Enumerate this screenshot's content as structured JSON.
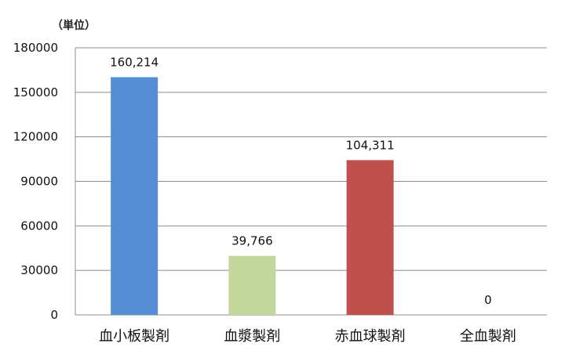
{
  "unit_label": "（単位）",
  "chart_data": {
    "type": "bar",
    "categories": [
      "血小板製剤",
      "血漿製剤",
      "赤血球製剤",
      "全血製剤"
    ],
    "values": [
      160214,
      39766,
      104311,
      0
    ],
    "data_labels": [
      "160,214",
      "39,766",
      "104,311",
      "0"
    ],
    "colors": [
      "#558ED5",
      "#C3D69B",
      "#C0504D",
      "#C0504D"
    ],
    "ylim": [
      0,
      180000
    ],
    "yticks": [
      0,
      30000,
      60000,
      90000,
      120000,
      150000,
      180000
    ],
    "ytick_labels": [
      "0",
      "30000",
      "60000",
      "90000",
      "120000",
      "150000",
      "180000"
    ],
    "grid": true,
    "title": "",
    "xlabel": "",
    "ylabel": ""
  }
}
